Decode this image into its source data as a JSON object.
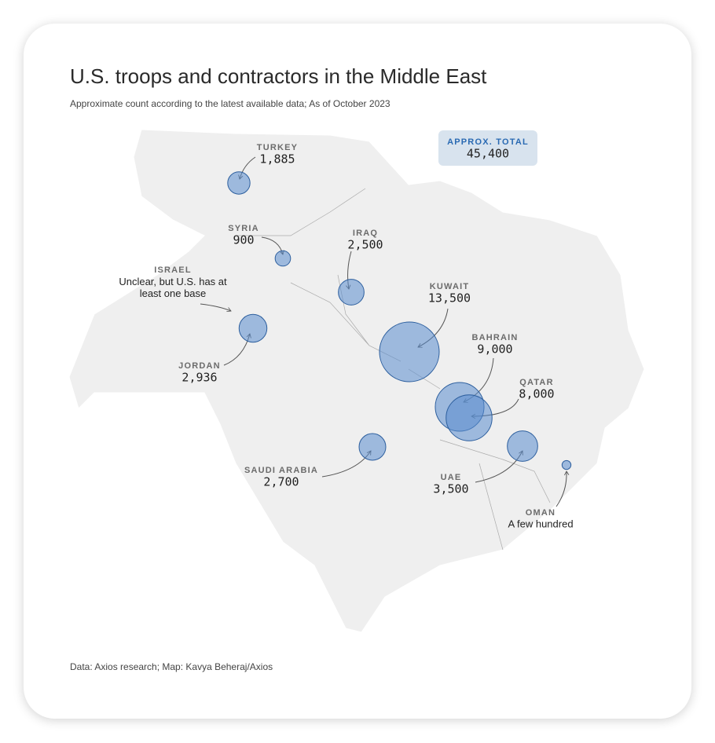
{
  "header": {
    "title": "U.S. troops and contractors in the Middle East",
    "subtitle": "Approximate count according to the latest available data; As of October 2023"
  },
  "total": {
    "label": "APPROX. TOTAL",
    "value": "45,400"
  },
  "countries": [
    {
      "name": "TURKEY",
      "label": "1,885",
      "value": 1885
    },
    {
      "name": "SYRIA",
      "label": "900",
      "value": 900
    },
    {
      "name": "IRAQ",
      "label": "2,500",
      "value": 2500
    },
    {
      "name": "ISRAEL",
      "label": "Unclear, but U.S. has at least one base",
      "value": null
    },
    {
      "name": "JORDAN",
      "label": "2,936",
      "value": 2936
    },
    {
      "name": "KUWAIT",
      "label": "13,500",
      "value": 13500
    },
    {
      "name": "BAHRAIN",
      "label": "9,000",
      "value": 9000
    },
    {
      "name": "QATAR",
      "label": "8,000",
      "value": 8000
    },
    {
      "name": "SAUDI ARABIA",
      "label": "2,700",
      "value": 2700
    },
    {
      "name": "UAE",
      "label": "3,500",
      "value": 3500
    },
    {
      "name": "OMAN",
      "label": "A few hundred",
      "value": 300
    }
  ],
  "footer": {
    "source": "Data: Axios research; Map: Kavya Beheraj/Axios"
  }
}
